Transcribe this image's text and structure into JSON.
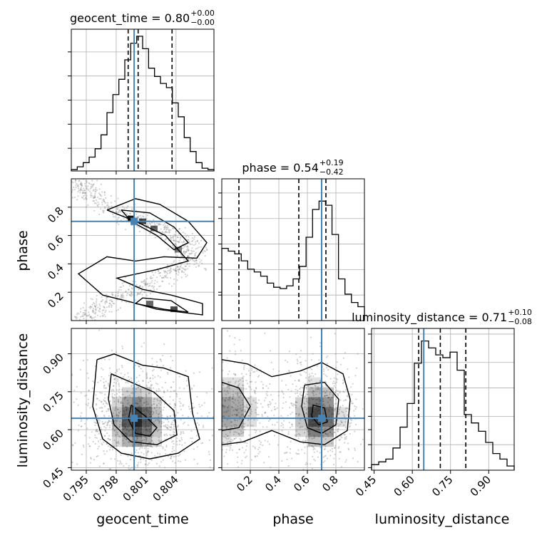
{
  "chart_data": {
    "type": "corner",
    "parameters": [
      {
        "name": "geocent_time",
        "axis_label": "geocent_time",
        "title_label": "geocent_time",
        "median": "0.80",
        "plus": "+0.00",
        "minus": "−0.00",
        "ticks": [
          "0.795",
          "0.798",
          "0.801",
          "0.804"
        ]
      },
      {
        "name": "phase",
        "axis_label": "phase",
        "title_label": "phase",
        "median": "0.54",
        "plus": "+0.19",
        "minus": "−0.42",
        "ticks": [
          "0.2",
          "0.4",
          "0.6",
          "0.8"
        ]
      },
      {
        "name": "luminosity_distance",
        "axis_label": "luminosity_distance",
        "title_label": "luminosity_distance",
        "median": "0.71",
        "plus": "+0.10",
        "minus": "−0.08",
        "ticks": [
          "0.45",
          "0.60",
          "0.75",
          "0.90"
        ]
      }
    ],
    "truths": {
      "geocent_time": 0.7998,
      "phase": 0.7,
      "luminosity_distance": 0.645
    },
    "quantiles": {
      "geocent_time": [
        0.7992,
        0.8002,
        0.8036
      ],
      "phase": [
        0.12,
        0.54,
        0.73
      ],
      "luminosity_distance": [
        0.625,
        0.71,
        0.81
      ]
    },
    "ranges": {
      "geocent_time": [
        0.7935,
        0.8078
      ],
      "phase": [
        0.0,
        1.0
      ],
      "luminosity_distance": [
        0.44,
        1.0
      ]
    },
    "phase_ticks_2d": [
      "0.2",
      "0.4",
      "0.6",
      "0.8"
    ],
    "ld_ticks_2d": [
      "0.45",
      "0.60",
      "0.75",
      "0.90"
    ],
    "hist_geocent_time": [
      0.01,
      0.03,
      0.06,
      0.1,
      0.16,
      0.26,
      0.42,
      0.55,
      0.66,
      0.8,
      0.92,
      0.97,
      0.88,
      0.74,
      0.68,
      0.63,
      0.6,
      0.49,
      0.39,
      0.24,
      0.14,
      0.06,
      0.02,
      0.01
    ],
    "hist_phase": [
      0.52,
      0.5,
      0.48,
      0.43,
      0.37,
      0.35,
      0.32,
      0.27,
      0.24,
      0.23,
      0.25,
      0.3,
      0.39,
      0.6,
      0.8,
      0.86,
      0.83,
      0.62,
      0.3,
      0.19,
      0.13,
      0.1
    ],
    "hist_luminosity_distance": [
      0.04,
      0.06,
      0.08,
      0.16,
      0.31,
      0.48,
      0.77,
      0.93,
      0.88,
      0.83,
      0.81,
      0.85,
      0.72,
      0.4,
      0.34,
      0.28,
      0.2,
      0.12,
      0.08,
      0.03
    ],
    "truth_color": "#4682b4"
  }
}
